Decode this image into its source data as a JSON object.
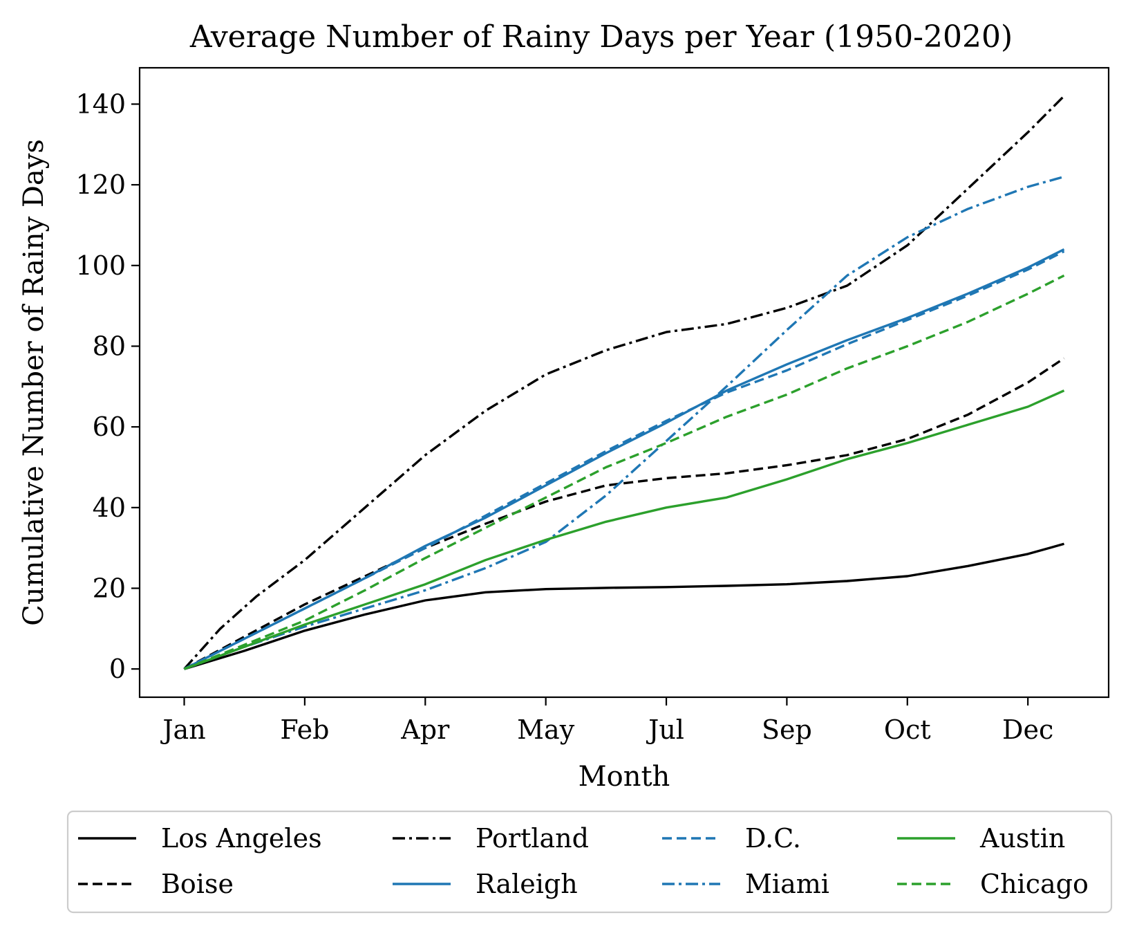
{
  "chart_data": {
    "type": "line",
    "title": "Average Number of Rainy Days per Year (1950-2020)",
    "xlabel": "Month",
    "ylabel": "Cumulative Number of Rainy Days",
    "x_tick_labels": [
      "Jan",
      "Feb",
      "Apr",
      "May",
      "Jul",
      "Sep",
      "Oct",
      "Dec"
    ],
    "x_tick_positions": [
      0,
      1,
      2,
      3,
      4,
      5,
      6,
      7
    ],
    "xlim": [
      -0.37,
      7.67
    ],
    "ylim": [
      -7,
      149
    ],
    "y_ticks": [
      0,
      20,
      40,
      60,
      80,
      100,
      120,
      140
    ],
    "grid": false,
    "legend_placement": "below plot, 4 columns",
    "series": [
      {
        "name": "Los Angeles",
        "color": "#000000",
        "dash": "solid",
        "x": [
          0,
          0.5,
          1,
          1.5,
          2,
          2.5,
          3,
          3.5,
          4,
          4.5,
          5,
          5.5,
          6,
          6.5,
          7,
          7.3
        ],
        "y": [
          0,
          4.5,
          9.5,
          13.5,
          17,
          19,
          19.8,
          20.1,
          20.3,
          20.6,
          21,
          21.8,
          23,
          25.5,
          28.5,
          31
        ]
      },
      {
        "name": "Boise",
        "color": "#000000",
        "dash": "dashed",
        "x": [
          0,
          0.5,
          1,
          1.5,
          2,
          2.5,
          3,
          3.5,
          4,
          4.5,
          5,
          5.5,
          6,
          6.5,
          7,
          7.3
        ],
        "y": [
          0,
          8,
          16,
          23,
          30,
          36,
          41.5,
          45.5,
          47.3,
          48.5,
          50.5,
          53,
          57,
          63,
          71,
          77
        ]
      },
      {
        "name": "Portland",
        "color": "#000000",
        "dash": "dashdot",
        "x": [
          0,
          0.3,
          0.6,
          1,
          1.5,
          2,
          2.5,
          3,
          3.5,
          4,
          4.5,
          5,
          5.5,
          6,
          6.5,
          7,
          7.3
        ],
        "y": [
          0,
          10,
          18,
          27,
          40,
          53,
          64,
          73,
          79,
          83.5,
          85.5,
          89.5,
          95,
          105,
          119,
          133,
          142
        ]
      },
      {
        "name": "Raleigh",
        "color": "#1f77b4",
        "dash": "solid",
        "x": [
          0,
          0.5,
          1,
          1.5,
          2,
          2.5,
          3,
          3.5,
          4,
          4.5,
          5,
          5.5,
          6,
          6.5,
          7,
          7.3
        ],
        "y": [
          0,
          7.5,
          15,
          22.5,
          30.5,
          37.5,
          45.5,
          53.5,
          61,
          69,
          75.5,
          81.5,
          87,
          93,
          99.5,
          104
        ]
      },
      {
        "name": "D.C.",
        "color": "#1f77b4",
        "dash": "dashed",
        "x": [
          0,
          0.5,
          1,
          1.5,
          2,
          2.5,
          3,
          3.5,
          4,
          4.5,
          5,
          5.5,
          6,
          6.5,
          7,
          7.3
        ],
        "y": [
          0,
          7.5,
          15,
          22.5,
          30,
          38,
          46,
          54,
          61.5,
          68.5,
          74,
          80.5,
          86.5,
          92.5,
          99,
          103.5
        ]
      },
      {
        "name": "Miami",
        "color": "#1f77b4",
        "dash": "dashdot",
        "x": [
          0,
          0.5,
          1,
          1.5,
          2,
          2.5,
          3,
          3.5,
          4,
          4.5,
          5,
          5.5,
          6,
          6.5,
          7,
          7.3
        ],
        "y": [
          0,
          5.5,
          10.5,
          15,
          19.5,
          25,
          31.5,
          43,
          56.5,
          70,
          84,
          97.5,
          107,
          114,
          119.5,
          122
        ]
      },
      {
        "name": "Austin",
        "color": "#2ca02c",
        "dash": "solid",
        "x": [
          0,
          0.5,
          1,
          1.5,
          2,
          2.5,
          3,
          3.5,
          4,
          4.5,
          5,
          5.5,
          6,
          6.5,
          7,
          7.3
        ],
        "y": [
          0,
          5.5,
          11,
          16,
          21,
          27,
          32,
          36.5,
          40,
          42.5,
          47,
          52,
          56,
          60.5,
          65,
          69
        ]
      },
      {
        "name": "Chicago",
        "color": "#2ca02c",
        "dash": "dashed",
        "x": [
          0,
          0.5,
          1,
          1.5,
          2,
          2.5,
          3,
          3.5,
          4,
          4.5,
          5,
          5.5,
          6,
          6.5,
          7,
          7.3
        ],
        "y": [
          0,
          6,
          12,
          19.5,
          27.5,
          35,
          42.5,
          50,
          56,
          62.5,
          68,
          74.5,
          80,
          86,
          93,
          97.5
        ]
      }
    ]
  }
}
